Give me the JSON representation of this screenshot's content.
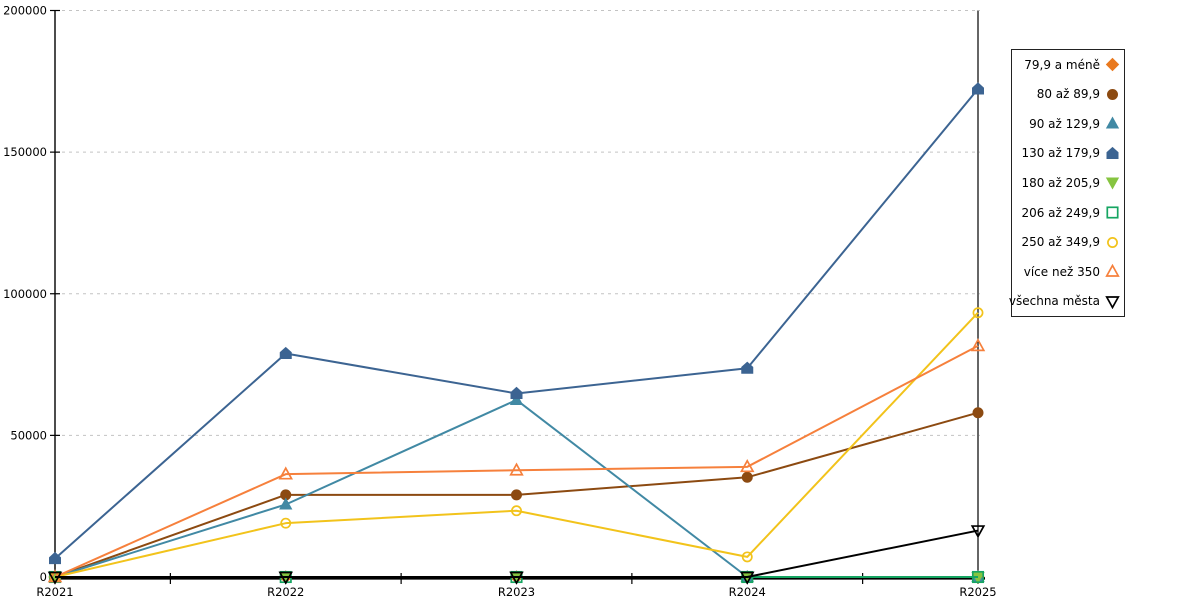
{
  "chart_data": {
    "type": "line",
    "categories": [
      "R2021",
      "R2022",
      "R2023",
      "R2024",
      "R2025"
    ],
    "series": [
      {
        "name": "79,9 a méně",
        "marker": "diamond",
        "filled": true,
        "color": "#e9791e",
        "values": [
          0,
          0,
          0,
          0,
          0
        ]
      },
      {
        "name": "80 až 89,9",
        "marker": "circle",
        "filled": true,
        "color": "#8c4a11",
        "values": [
          0,
          29000,
          29000,
          35200,
          58000
        ]
      },
      {
        "name": "90 až 129,9",
        "marker": "triangle-up",
        "filled": true,
        "color": "#4189a4",
        "values": [
          0,
          25600,
          62500,
          0,
          0
        ]
      },
      {
        "name": "130 až 179,9",
        "marker": "pentagon",
        "filled": true,
        "color": "#3c6492",
        "values": [
          6500,
          78900,
          64800,
          73700,
          172300
        ]
      },
      {
        "name": "180 až 205,9",
        "marker": "triangle-down",
        "filled": true,
        "color": "#86c440",
        "values": [
          0,
          0,
          0,
          0,
          0
        ]
      },
      {
        "name": "206 až 249,9",
        "marker": "square",
        "filled": false,
        "color": "#16a562",
        "values": [
          0,
          0,
          0,
          0,
          0
        ]
      },
      {
        "name": "250 až 349,9",
        "marker": "circle",
        "filled": false,
        "color": "#f2c31b",
        "values": [
          0,
          19000,
          23400,
          7100,
          93300
        ]
      },
      {
        "name": "více než 350",
        "marker": "triangle-up",
        "filled": false,
        "color": "#f6803c",
        "values": [
          0,
          36300,
          37700,
          38900,
          81600
        ]
      },
      {
        "name": "všechna města",
        "marker": "triangle-down",
        "filled": false,
        "color": "#000000",
        "values": [
          0,
          0,
          0,
          0,
          16400
        ]
      }
    ],
    "ylim": [
      0,
      200000
    ],
    "yticks": [
      0,
      50000,
      100000,
      150000,
      200000
    ],
    "ytick_labels": [
      "0",
      "50000",
      "100000",
      "150000",
      "200000"
    ],
    "grid": "horizontal-dashed",
    "grid_color": "#c3c3c3",
    "axis_color": "#000000",
    "legend_position": "right"
  }
}
